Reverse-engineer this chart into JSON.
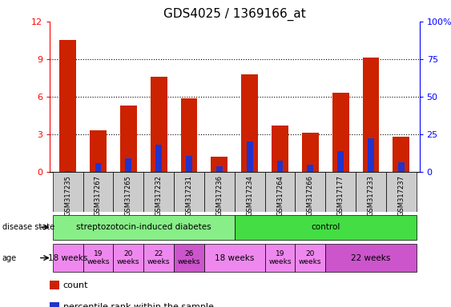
{
  "title": "GDS4025 / 1369166_at",
  "samples": [
    "GSM317235",
    "GSM317267",
    "GSM317265",
    "GSM317232",
    "GSM317231",
    "GSM317236",
    "GSM317234",
    "GSM317264",
    "GSM317266",
    "GSM317177",
    "GSM317233",
    "GSM317237"
  ],
  "count_values": [
    10.5,
    3.3,
    5.3,
    7.6,
    5.9,
    1.2,
    7.8,
    3.7,
    3.1,
    6.3,
    9.1,
    2.8
  ],
  "percentile_values": [
    0.05,
    0.7,
    1.1,
    2.2,
    1.3,
    0.45,
    2.4,
    0.9,
    0.55,
    1.65,
    2.7,
    0.75
  ],
  "ylim_left": [
    0,
    12
  ],
  "ylim_right": [
    0,
    100
  ],
  "yticks_left": [
    0,
    3,
    6,
    9,
    12
  ],
  "yticks_right": [
    0,
    25,
    50,
    75,
    100
  ],
  "ytick_right_labels": [
    "0",
    "25",
    "50",
    "75",
    "100%"
  ],
  "bar_color": "#cc2200",
  "percentile_color": "#2233cc",
  "title_fontsize": 11,
  "ds_groups": [
    {
      "label": "streptozotocin-induced diabetes",
      "xmin": 0,
      "xmax": 6,
      "color": "#88ee88"
    },
    {
      "label": "control",
      "xmin": 6,
      "xmax": 12,
      "color": "#44dd44"
    }
  ],
  "age_groups": [
    {
      "label": "18 weeks",
      "xmin": 0,
      "xmax": 1,
      "color": "#ee88ee",
      "fs": 7.5
    },
    {
      "label": "19\nweeks",
      "xmin": 1,
      "xmax": 2,
      "color": "#ee88ee",
      "fs": 6.5
    },
    {
      "label": "20\nweeks",
      "xmin": 2,
      "xmax": 3,
      "color": "#ee88ee",
      "fs": 6.5
    },
    {
      "label": "22\nweeks",
      "xmin": 3,
      "xmax": 4,
      "color": "#ee88ee",
      "fs": 6.5
    },
    {
      "label": "26\nweeks",
      "xmin": 4,
      "xmax": 5,
      "color": "#cc55cc",
      "fs": 6.5
    },
    {
      "label": "18 weeks",
      "xmin": 5,
      "xmax": 7,
      "color": "#ee88ee",
      "fs": 7.5
    },
    {
      "label": "19\nweeks",
      "xmin": 7,
      "xmax": 8,
      "color": "#ee88ee",
      "fs": 6.5
    },
    {
      "label": "20\nweeks",
      "xmin": 8,
      "xmax": 9,
      "color": "#ee88ee",
      "fs": 6.5
    },
    {
      "label": "22 weeks",
      "xmin": 9,
      "xmax": 12,
      "color": "#cc55cc",
      "fs": 7.5
    }
  ],
  "legend_items": [
    {
      "label": "count",
      "color": "#cc2200"
    },
    {
      "label": "percentile rank within the sample",
      "color": "#2233cc"
    }
  ]
}
